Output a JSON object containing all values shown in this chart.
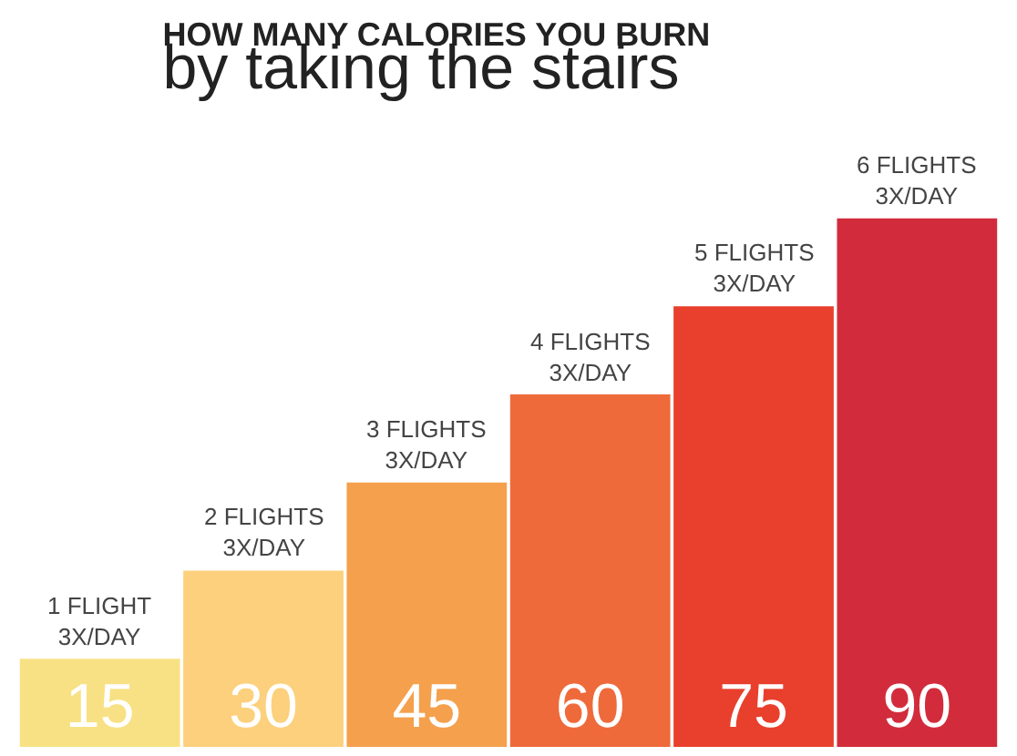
{
  "chart_data": {
    "type": "bar",
    "title": "HOW MANY CALORIES YOU BURN",
    "subtitle": "by taking the stairs",
    "categories": [
      "1 FLIGHT\n3X/DAY",
      "2 FLIGHTS\n3X/DAY",
      "3 FLIGHTS\n3X/DAY",
      "4 FLIGHTS\n3X/DAY",
      "5 FLIGHTS\n3X/DAY",
      "6 FLIGHTS\n3X/DAY"
    ],
    "values": [
      15,
      30,
      45,
      60,
      75,
      90
    ],
    "colors": [
      "#f8e184",
      "#fcd07c",
      "#f4a04c",
      "#ef6a3a",
      "#e8402d",
      "#d22c3c"
    ],
    "data_labels": true
  }
}
